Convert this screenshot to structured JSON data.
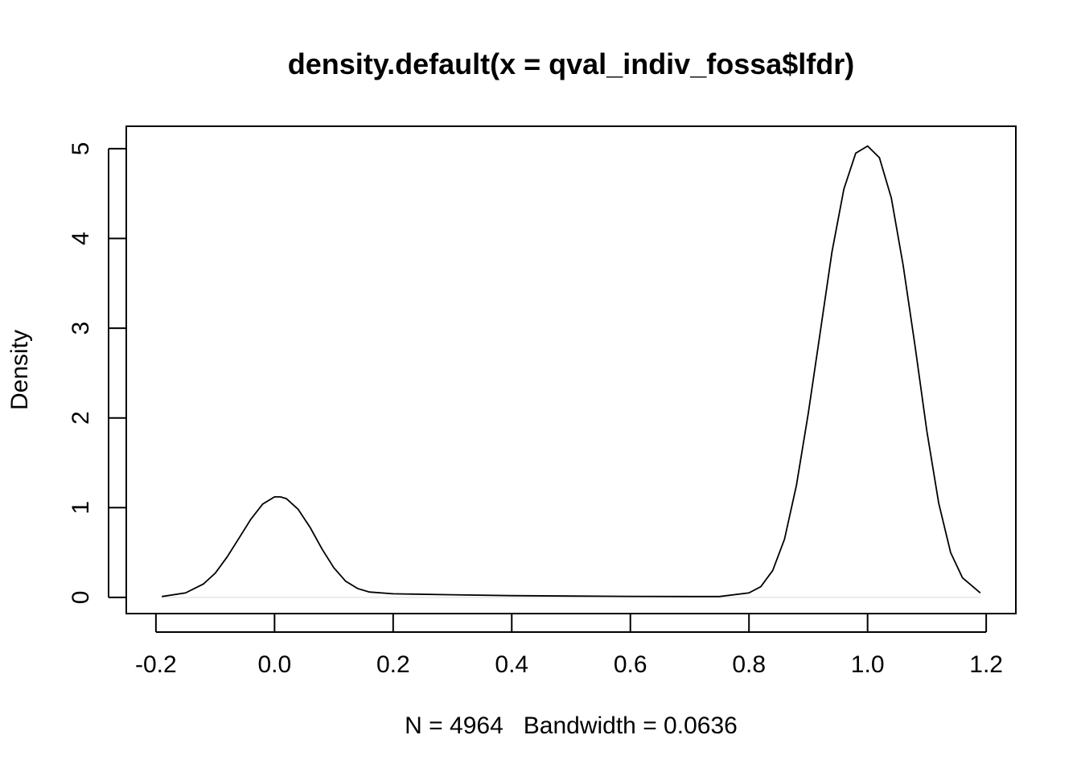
{
  "chart_data": {
    "type": "line",
    "title": "density.default(x = qval_indiv_fossa$lfdr)",
    "xlabel": "N = 4964   Bandwidth = 0.0636",
    "ylabel": "Density",
    "xlim": [
      -0.25,
      1.25
    ],
    "ylim": [
      -0.18,
      5.25
    ],
    "x_ticks": [
      -0.2,
      0.0,
      0.2,
      0.4,
      0.6,
      0.8,
      1.0,
      1.2
    ],
    "x_tick_labels": [
      "-0.2",
      "0.0",
      "0.2",
      "0.4",
      "0.6",
      "0.8",
      "1.0",
      "1.2"
    ],
    "y_ticks": [
      0,
      1,
      2,
      3,
      4,
      5
    ],
    "y_tick_labels": [
      "0",
      "1",
      "2",
      "3",
      "4",
      "5"
    ],
    "grid": false,
    "zero_line": true,
    "series": [
      {
        "color": "#000000",
        "x": [
          -0.19,
          -0.15,
          -0.12,
          -0.1,
          -0.08,
          -0.06,
          -0.04,
          -0.02,
          0.0,
          0.01,
          0.02,
          0.04,
          0.06,
          0.08,
          0.1,
          0.12,
          0.14,
          0.16,
          0.2,
          0.3,
          0.4,
          0.5,
          0.6,
          0.7,
          0.75,
          0.8,
          0.82,
          0.84,
          0.86,
          0.88,
          0.9,
          0.92,
          0.94,
          0.96,
          0.98,
          1.0,
          1.02,
          1.04,
          1.06,
          1.08,
          1.1,
          1.12,
          1.14,
          1.16,
          1.19
        ],
        "y": [
          0.01,
          0.05,
          0.15,
          0.27,
          0.45,
          0.66,
          0.87,
          1.04,
          1.12,
          1.12,
          1.1,
          0.98,
          0.78,
          0.54,
          0.33,
          0.18,
          0.1,
          0.06,
          0.04,
          0.03,
          0.02,
          0.015,
          0.012,
          0.01,
          0.01,
          0.05,
          0.12,
          0.3,
          0.65,
          1.25,
          2.05,
          2.95,
          3.85,
          4.55,
          4.95,
          5.03,
          4.9,
          4.45,
          3.7,
          2.8,
          1.85,
          1.05,
          0.5,
          0.22,
          0.05
        ]
      }
    ]
  }
}
